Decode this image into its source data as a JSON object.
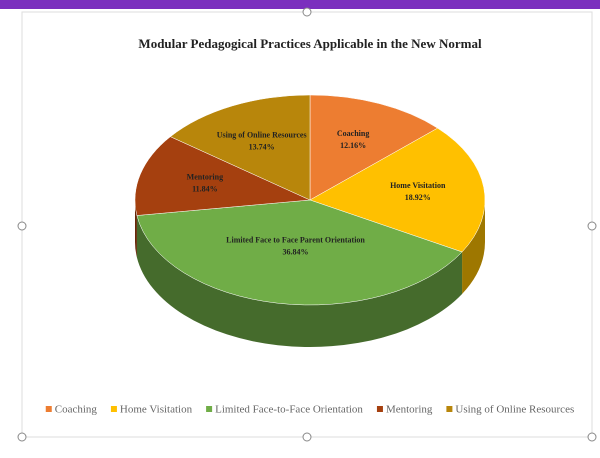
{
  "chart_data": {
    "type": "pie3d",
    "title": "Modular Pedagogical Practices Applicable in the New Normal",
    "categories": [
      "Coaching",
      "Home Visitation",
      "Limited Face-to-Face Orientation",
      "Mentoring",
      "Using of Online Resources"
    ],
    "slice_labels": [
      "Coaching",
      "Home Visitation",
      "Limited Face to Face Parent Orientation",
      "Mentoring",
      "Using of Online Resources"
    ],
    "values": [
      12.16,
      18.92,
      36.84,
      11.84,
      13.74
    ],
    "value_labels": [
      "12.16%",
      "18.92%",
      "36.84%",
      "11.84%",
      "13.74%"
    ],
    "colors": [
      "#ed7d31",
      "#ffc000",
      "#70ad47",
      "#a5400f",
      "#b8860b"
    ],
    "legend": "bottom"
  }
}
